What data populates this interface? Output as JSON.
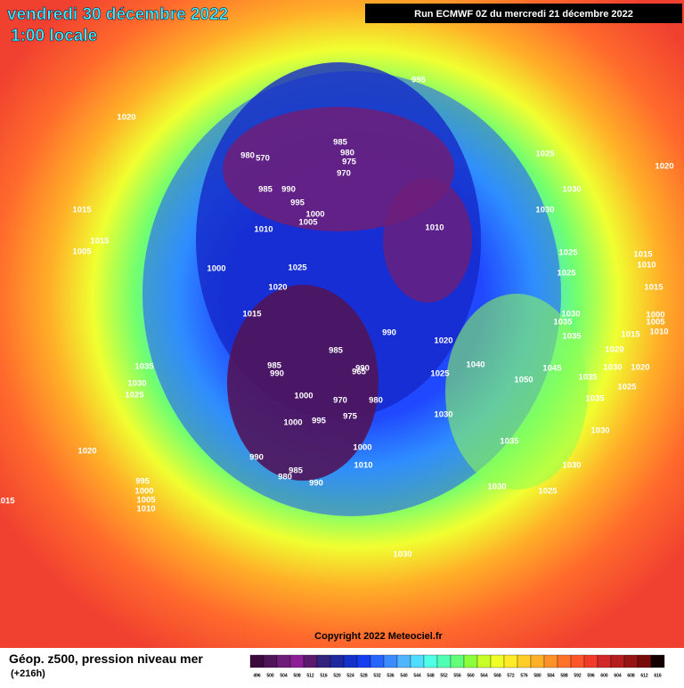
{
  "header": {
    "title": "vendredi 30 décembre 2022",
    "subtitle": "1:00 locale",
    "run": "Run ECMWF 0Z du mercredi 21 décembre 2022"
  },
  "copyright": "Copyright 2022 Meteociel.fr",
  "footer": {
    "title": "Géop. z500, pression niveau mer",
    "lead": "(+216h)"
  },
  "colorbar": {
    "labels": [
      496,
      500,
      504,
      508,
      512,
      516,
      520,
      524,
      528,
      532,
      536,
      540,
      544,
      548,
      552,
      556,
      560,
      564,
      568,
      572,
      576,
      580,
      584,
      588,
      592,
      596,
      600,
      604,
      608,
      612,
      616
    ],
    "colors": [
      "#3c0a3c",
      "#50145a",
      "#6e1e78",
      "#8c1e96",
      "#5a1a6e",
      "#32237d",
      "#1e28a0",
      "#1432c8",
      "#143cf0",
      "#2864ff",
      "#3c8cff",
      "#50b4ff",
      "#50dcff",
      "#50ffe6",
      "#50ffb4",
      "#64ff78",
      "#8cff3c",
      "#c8ff28",
      "#f0ff28",
      "#ffeb28",
      "#ffcd28",
      "#ffaf28",
      "#ff9128",
      "#ff7328",
      "#ff5528",
      "#f03c28",
      "#d22828",
      "#b41e1e",
      "#961414",
      "#780a0a",
      "#140000"
    ]
  },
  "isobars": [
    995,
    1020,
    985,
    980,
    570,
    980,
    975,
    970,
    1025,
    1020,
    985,
    990,
    995,
    1000,
    1005,
    1010,
    1010,
    1030,
    1030,
    1015,
    1015,
    1005,
    1025,
    1015,
    1010,
    1000,
    1025,
    1025,
    1015,
    1020,
    1015,
    1030,
    1035,
    1000,
    1005,
    1010,
    990,
    1035,
    1015,
    985,
    1020,
    1020,
    1035,
    985,
    990,
    990,
    1040,
    1045,
    1030,
    1020,
    1035,
    1025,
    1050,
    1030,
    965,
    1000,
    970,
    980,
    1025,
    1025,
    1035,
    975,
    1000,
    995,
    1030,
    1030,
    1035,
    1000,
    1020,
    990,
    985,
    980,
    1010,
    1030,
    990,
    995,
    1000,
    1005,
    1010,
    1015,
    1030,
    1025,
    1030
  ]
}
